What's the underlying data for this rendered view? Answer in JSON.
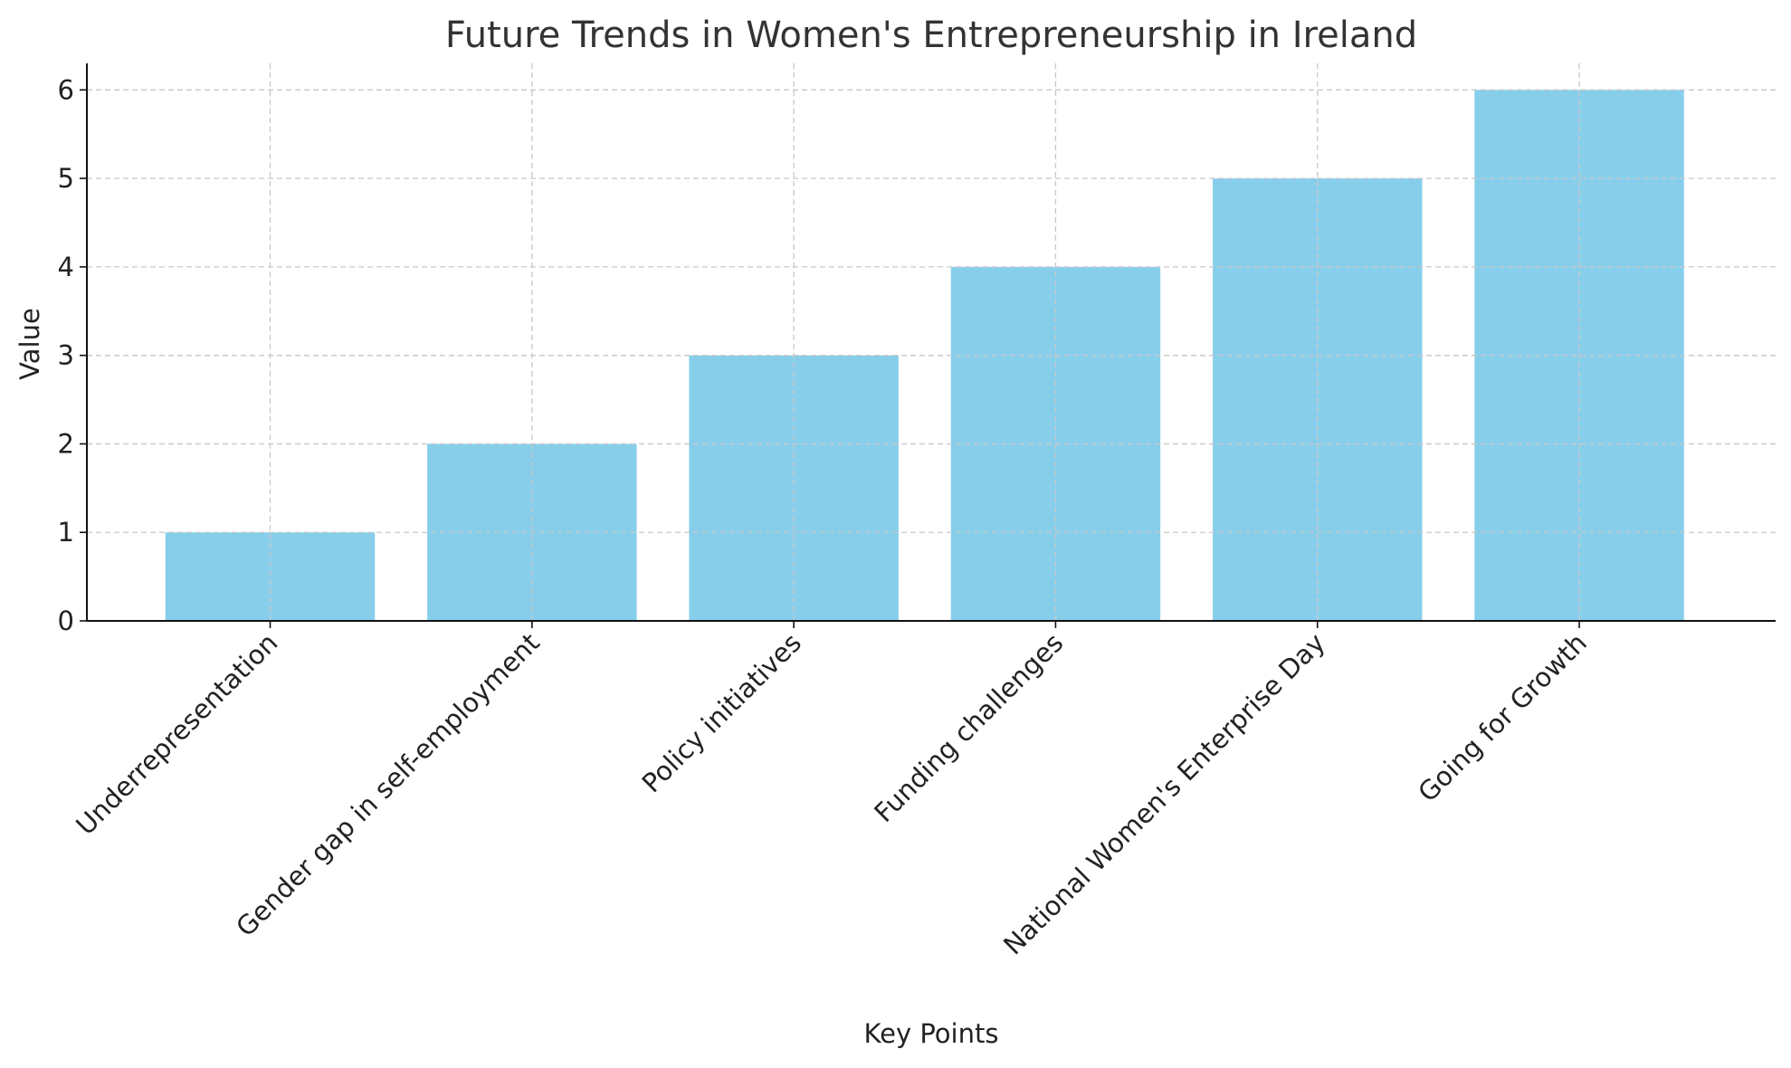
{
  "chart_data": {
    "type": "bar",
    "title": "Future Trends in Women's Entrepreneurship in Ireland",
    "xlabel": "Key Points",
    "ylabel": "Value",
    "categories": [
      "Underrepresentation",
      "Gender gap in self-employment",
      "Policy initiatives",
      "Funding challenges",
      "National Women's Enterprise Day",
      "Going for Growth"
    ],
    "values": [
      1,
      2,
      3,
      4,
      5,
      6
    ],
    "ylim": [
      0,
      6.3
    ],
    "yticks": [
      0,
      1,
      2,
      3,
      4,
      5,
      6
    ],
    "bar_color": "#87CEEB",
    "grid": true,
    "legend": "none"
  }
}
